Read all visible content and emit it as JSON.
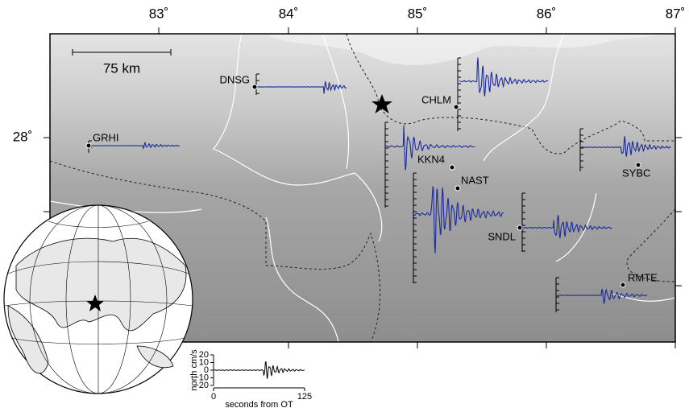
{
  "map": {
    "lon_labels": [
      "83˚",
      "84˚",
      "85˚",
      "86˚",
      "87˚"
    ],
    "lat_labels": [
      "28˚"
    ],
    "scale_bar": "75 km",
    "stations": [
      "GRHI",
      "DNSG",
      "CHLM",
      "KKN4",
      "NAST",
      "SNDL",
      "SYBC",
      "RMTE"
    ]
  },
  "record_scale": {
    "y_label": "north cm/s",
    "y_ticks": [
      "20",
      "10",
      "0",
      "−10",
      "−20"
    ],
    "x_ticks": [
      "0",
      "125"
    ],
    "x_label": "seconds from OT"
  }
}
